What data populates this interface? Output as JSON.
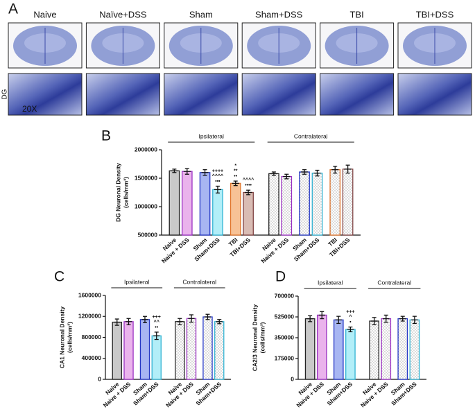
{
  "figure": {
    "label": "A",
    "columns": [
      "Naive",
      "Naïve+DSS",
      "Sham",
      "Sham+DSS",
      "TBI",
      "TBI+DSS"
    ],
    "region": "DG",
    "magnification": "20X"
  },
  "chart_data": [
    {
      "type": "bar",
      "label": "B",
      "ylabel": [
        "DG Neuronal Density",
        "(cells/mm³)"
      ],
      "groups": [
        "Ipsilateral",
        "Contralateral"
      ],
      "categories": [
        "Naive",
        "Naive + DSS",
        "Sham",
        "Sham+DSS",
        "TBI",
        "TBI+DSS",
        "Naive",
        "Naive + DSS",
        "Sham",
        "Sham+DSS",
        "TBI",
        "TBI+DSS"
      ],
      "values": [
        1630000,
        1620000,
        1600000,
        1300000,
        1410000,
        1250000,
        1580000,
        1530000,
        1610000,
        1590000,
        1650000,
        1660000
      ],
      "errors": [
        30000,
        50000,
        50000,
        60000,
        40000,
        40000,
        30000,
        40000,
        40000,
        50000,
        60000,
        70000
      ],
      "colors": [
        "#c9c9c9",
        "#eab3ec",
        "#a8b6f2",
        "#b2eef8",
        "#f7c296",
        "#d9bcb4",
        "#ffffff",
        "#ffffff",
        "#ffffff",
        "#ffffff",
        "#ffffff",
        "#ffffff"
      ],
      "edge_colors": [
        "#222222",
        "#9a2fc2",
        "#2336c4",
        "#2fb2d2",
        "#e0742a",
        "#7e4040",
        "#222222",
        "#9a2fc2",
        "#2336c4",
        "#2fb2d2",
        "#e0742a",
        "#7e4040"
      ],
      "hatched": [
        false,
        false,
        false,
        false,
        false,
        false,
        true,
        true,
        true,
        true,
        true,
        true
      ],
      "significance": [
        null,
        null,
        null,
        [
          "++++",
          "^^^^",
          "•••"
        ],
        [
          "*",
          "**",
          "••"
        ],
        [
          "^^^^",
          "••••"
        ],
        null,
        null,
        null,
        null,
        null,
        null
      ],
      "ylim": [
        500000,
        2000000
      ],
      "yticks": [
        500000,
        1000000,
        1500000,
        2000000
      ]
    },
    {
      "type": "bar",
      "label": "C",
      "ylabel": [
        "CA1 Neuronal Density",
        "(cells/mm³)"
      ],
      "groups": [
        "Ipsilateral",
        "Contralateral"
      ],
      "categories": [
        "Naive",
        "Naive + DSS",
        "Sham",
        "Sham+DSS",
        "Naive",
        "Naive + DSS",
        "Sham",
        "Sham+DSS"
      ],
      "values": [
        1090000,
        1100000,
        1140000,
        830000,
        1100000,
        1160000,
        1190000,
        1100000
      ],
      "errors": [
        60000,
        60000,
        60000,
        70000,
        60000,
        70000,
        50000,
        40000
      ],
      "colors": [
        "#c9c9c9",
        "#eab3ec",
        "#a8b6f2",
        "#b2eef8",
        "#ffffff",
        "#ffffff",
        "#ffffff",
        "#ffffff"
      ],
      "edge_colors": [
        "#222222",
        "#9a2fc2",
        "#2336c4",
        "#2fb2d2",
        "#222222",
        "#9a2fc2",
        "#2336c4",
        "#2fb2d2"
      ],
      "hatched": [
        false,
        false,
        false,
        false,
        true,
        true,
        true,
        true
      ],
      "significance": [
        null,
        null,
        null,
        [
          "+++",
          "^^",
          "••"
        ],
        null,
        null,
        null,
        null
      ],
      "ylim": [
        0,
        1600000
      ],
      "yticks": [
        0,
        400000,
        800000,
        1200000,
        1600000
      ]
    },
    {
      "type": "bar",
      "label": "D",
      "ylabel": [
        "CA2/3 Neuronal Density",
        "(cells/mm³)"
      ],
      "groups": [
        "Ipsilateral",
        "Contralateral"
      ],
      "categories": [
        "Naive",
        "Naive + DSS",
        "Sham",
        "Sham+DSS",
        "Naive",
        "Naive + DSS",
        "Sham",
        "Sham+DSS"
      ],
      "values": [
        510000,
        540000,
        500000,
        420000,
        490000,
        510000,
        510000,
        500000
      ],
      "errors": [
        25000,
        30000,
        30000,
        20000,
        30000,
        30000,
        20000,
        30000
      ],
      "colors": [
        "#c9c9c9",
        "#eab3ec",
        "#a8b6f2",
        "#b2eef8",
        "#ffffff",
        "#ffffff",
        "#ffffff",
        "#ffffff"
      ],
      "edge_colors": [
        "#222222",
        "#9a2fc2",
        "#2336c4",
        "#2fb2d2",
        "#222222",
        "#9a2fc2",
        "#2336c4",
        "#2fb2d2"
      ],
      "hatched": [
        false,
        false,
        false,
        false,
        true,
        true,
        true,
        true
      ],
      "significance": [
        null,
        null,
        null,
        [
          "+++",
          "^",
          "•"
        ],
        null,
        null,
        null,
        null
      ],
      "ylim": [
        0,
        700000
      ],
      "yticks": [
        0,
        175000,
        350000,
        525000,
        700000
      ]
    }
  ]
}
